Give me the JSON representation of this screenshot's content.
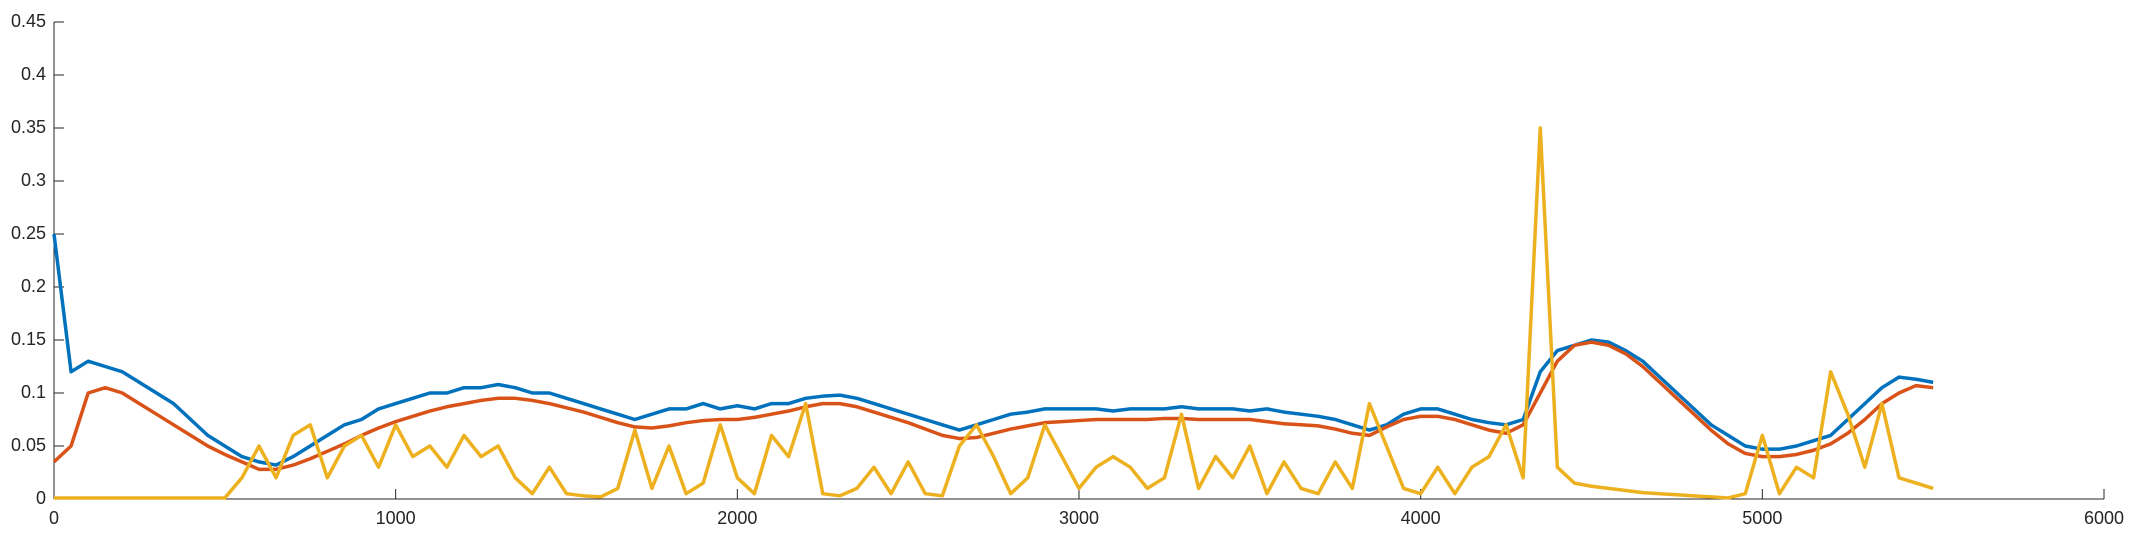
{
  "chart_data": {
    "type": "line",
    "x": [
      0,
      50,
      100,
      150,
      200,
      250,
      300,
      350,
      400,
      450,
      500,
      550,
      600,
      650,
      700,
      750,
      800,
      850,
      900,
      950,
      1000,
      1050,
      1100,
      1150,
      1200,
      1250,
      1300,
      1350,
      1400,
      1450,
      1500,
      1550,
      1600,
      1650,
      1700,
      1750,
      1800,
      1850,
      1900,
      1950,
      2000,
      2050,
      2100,
      2150,
      2200,
      2250,
      2300,
      2350,
      2400,
      2450,
      2500,
      2550,
      2600,
      2650,
      2700,
      2750,
      2800,
      2850,
      2900,
      2950,
      3000,
      3050,
      3100,
      3150,
      3200,
      3250,
      3300,
      3350,
      3400,
      3450,
      3500,
      3550,
      3600,
      3650,
      3700,
      3750,
      3800,
      3850,
      3900,
      3950,
      4000,
      4050,
      4100,
      4150,
      4200,
      4250,
      4300,
      4350,
      4400,
      4450,
      4500,
      4550,
      4600,
      4650,
      4700,
      4750,
      4800,
      4850,
      4900,
      4950,
      5000,
      5050,
      5100,
      5150,
      5200,
      5250,
      5300,
      5350,
      5400,
      5450,
      5500
    ],
    "series": [
      {
        "color": "#0072BD",
        "values": [
          0.25,
          0.12,
          0.13,
          0.125,
          0.12,
          0.11,
          0.1,
          0.09,
          0.075,
          0.06,
          0.05,
          0.04,
          0.035,
          0.032,
          0.04,
          0.05,
          0.06,
          0.07,
          0.075,
          0.085,
          0.09,
          0.095,
          0.1,
          0.1,
          0.105,
          0.105,
          0.108,
          0.105,
          0.1,
          0.1,
          0.095,
          0.09,
          0.085,
          0.08,
          0.075,
          0.08,
          0.085,
          0.085,
          0.09,
          0.085,
          0.088,
          0.085,
          0.09,
          0.09,
          0.095,
          0.097,
          0.098,
          0.095,
          0.09,
          0.085,
          0.08,
          0.075,
          0.07,
          0.065,
          0.07,
          0.075,
          0.08,
          0.082,
          0.085,
          0.085,
          0.085,
          0.085,
          0.083,
          0.085,
          0.085,
          0.085,
          0.087,
          0.085,
          0.085,
          0.085,
          0.083,
          0.085,
          0.082,
          0.08,
          0.078,
          0.075,
          0.07,
          0.065,
          0.07,
          0.08,
          0.085,
          0.085,
          0.08,
          0.075,
          0.072,
          0.07,
          0.075,
          0.12,
          0.14,
          0.145,
          0.15,
          0.148,
          0.14,
          0.13,
          0.115,
          0.1,
          0.085,
          0.07,
          0.06,
          0.05,
          0.047,
          0.047,
          0.05,
          0.055,
          0.06,
          0.075,
          0.09,
          0.105,
          0.115,
          0.113,
          0.11
        ]
      },
      {
        "color": "#D95319",
        "values": [
          0.035,
          0.05,
          0.1,
          0.105,
          0.1,
          0.09,
          0.08,
          0.07,
          0.06,
          0.05,
          0.042,
          0.035,
          0.028,
          0.028,
          0.032,
          0.038,
          0.045,
          0.052,
          0.06,
          0.067,
          0.073,
          0.078,
          0.083,
          0.087,
          0.09,
          0.093,
          0.095,
          0.095,
          0.093,
          0.09,
          0.086,
          0.082,
          0.077,
          0.072,
          0.068,
          0.067,
          0.069,
          0.072,
          0.074,
          0.075,
          0.075,
          0.077,
          0.08,
          0.083,
          0.087,
          0.09,
          0.09,
          0.087,
          0.082,
          0.077,
          0.072,
          0.066,
          0.06,
          0.057,
          0.058,
          0.062,
          0.066,
          0.069,
          0.072,
          0.073,
          0.074,
          0.075,
          0.075,
          0.075,
          0.075,
          0.076,
          0.076,
          0.075,
          0.075,
          0.075,
          0.075,
          0.073,
          0.071,
          0.07,
          0.069,
          0.066,
          0.062,
          0.06,
          0.068,
          0.075,
          0.078,
          0.078,
          0.075,
          0.07,
          0.065,
          0.062,
          0.07,
          0.1,
          0.13,
          0.145,
          0.148,
          0.145,
          0.137,
          0.125,
          0.11,
          0.095,
          0.08,
          0.065,
          0.052,
          0.043,
          0.04,
          0.04,
          0.042,
          0.046,
          0.052,
          0.062,
          0.075,
          0.09,
          0.1,
          0.107,
          0.105
        ]
      },
      {
        "color": "#EDB120",
        "values": [
          0.001,
          0.001,
          0.001,
          0.001,
          0.001,
          0.001,
          0.001,
          0.001,
          0.001,
          0.001,
          0.001,
          0.02,
          0.05,
          0.02,
          0.06,
          0.07,
          0.02,
          0.05,
          0.06,
          0.03,
          0.07,
          0.04,
          0.05,
          0.03,
          0.06,
          0.04,
          0.05,
          0.02,
          0.005,
          0.03,
          0.005,
          0.003,
          0.002,
          0.01,
          0.065,
          0.01,
          0.05,
          0.005,
          0.015,
          0.07,
          0.02,
          0.005,
          0.06,
          0.04,
          0.09,
          0.005,
          0.003,
          0.01,
          0.03,
          0.005,
          0.035,
          0.005,
          0.003,
          0.05,
          0.07,
          0.04,
          0.005,
          0.02,
          0.07,
          0.04,
          0.01,
          0.03,
          0.04,
          0.03,
          0.01,
          0.02,
          0.08,
          0.01,
          0.04,
          0.02,
          0.05,
          0.005,
          0.035,
          0.01,
          0.005,
          0.035,
          0.01,
          0.09,
          0.05,
          0.01,
          0.005,
          0.03,
          0.005,
          0.03,
          0.04,
          0.07,
          0.02,
          0.35,
          0.03,
          0.015,
          0.012,
          0.01,
          0.008,
          0.006,
          0.005,
          0.004,
          0.003,
          0.002,
          0.001,
          0.005,
          0.06,
          0.005,
          0.03,
          0.02,
          0.12,
          0.08,
          0.03,
          0.09,
          0.02,
          0.015,
          0.01
        ]
      }
    ],
    "xlim": [
      0,
      6000
    ],
    "xticks": [
      0,
      1000,
      2000,
      3000,
      4000,
      5000,
      6000
    ],
    "ylim": [
      0,
      0.45
    ],
    "yticks": [
      0,
      0.05,
      0.1,
      0.15,
      0.2,
      0.25,
      0.3,
      0.35,
      0.4,
      0.45
    ]
  }
}
